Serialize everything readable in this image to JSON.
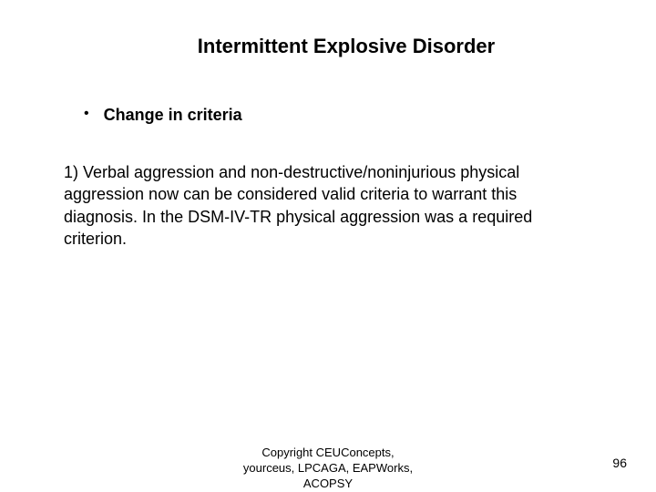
{
  "title": "Intermittent Explosive Disorder",
  "bullet": {
    "label": "Change in criteria"
  },
  "body": "1) Verbal aggression and non-destructive/noninjurious physical aggression now can be considered valid criteria to warrant this diagnosis. In the DSM-IV-TR physical aggression was a required criterion.",
  "footer": {
    "copyright_line1": "Copyright CEUConcepts,",
    "copyright_line2": "yourceus, LPCAGA, EAPWorks,",
    "copyright_line3": "ACOPSY"
  },
  "page_number": "96",
  "colors": {
    "background": "#ffffff",
    "text": "#000000"
  },
  "fonts": {
    "title_size": 22,
    "body_size": 18,
    "footer_size": 13,
    "page_num_size": 14
  }
}
